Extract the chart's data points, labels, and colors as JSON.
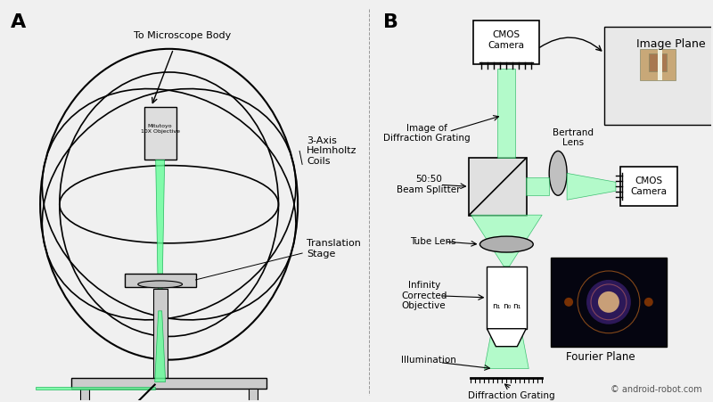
{
  "bg_color": "#f0f0f0",
  "panel_a_label": "A",
  "panel_b_label": "B",
  "watermark": "© android-robot.com",
  "labels_a": {
    "to_microscope": "To Microscope Body",
    "helmholtz": "3-Axis\nHelmholtz\nCoils",
    "translation": "Translation\nStage"
  },
  "labels_b": {
    "cmos_top": "CMOS\nCamera",
    "image_plane": "Image Plane",
    "image_diffraction": "Image of\nDiffraction Grating",
    "bertrand": "Bertrand\nLens",
    "beam_splitter": "50:50\nBeam Splitter",
    "cmos_right": "CMOS\nCamera",
    "tube_lens": "Tube Lens",
    "infinity": "Infinity\nCorrected\nObjective",
    "illumination": "Illumination",
    "diffraction_grating": "Diffraction Grating",
    "fourier_plane": "Fourier Plane",
    "n1_left": "n₁",
    "n0": "n₀",
    "n1_right": "n₁"
  },
  "green_color": "#00cc66",
  "green_light": "#99ffcc",
  "gray_color": "#888888",
  "dark_gray": "#444444",
  "light_gray": "#cccccc",
  "black": "#000000",
  "white": "#ffffff"
}
